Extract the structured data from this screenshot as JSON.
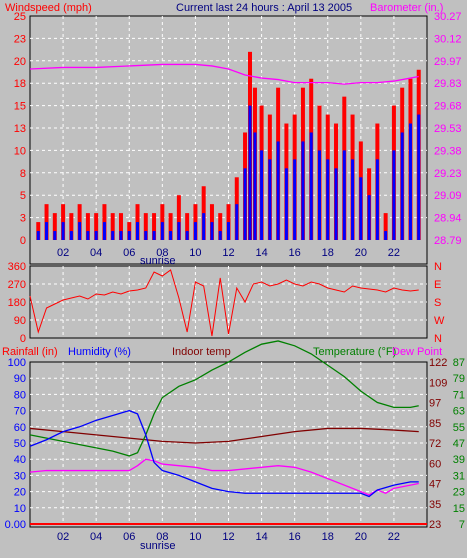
{
  "header": {
    "left_title": "Windspeed (mph)",
    "center_title": "Current last 24 hours : April 13 2005",
    "right_title": "Barometer (in.)"
  },
  "lower_header": {
    "rainfall": "Rainfall (in)",
    "humidity": "Humidity (%)",
    "indoor": "Indoor temp",
    "temperature": "Temperature (°F)",
    "dewpoint": "Dew Point"
  },
  "sunrise_label": "sunrise",
  "colors": {
    "background": "#c0c0c0",
    "grid": "#ffffff",
    "wind_avg": "#0000ff",
    "wind_gust": "#ff0000",
    "barometer": "#ff00ff",
    "direction": "#ff0000",
    "rainfall": "#ff0000",
    "humidity": "#0000ff",
    "indoor": "#800000",
    "temperature": "#008000",
    "dewpoint": "#ff00ff",
    "title_red": "#ff0000",
    "title_blue": "#000080",
    "title_magenta": "#ff00ff"
  },
  "chart_data": [
    {
      "type": "bar",
      "x_ticks": [
        "02",
        "04",
        "06",
        "08",
        "10",
        "12",
        "14",
        "16",
        "18",
        "20",
        "22"
      ],
      "xlim": [
        0,
        24
      ],
      "ylim": [
        0,
        25
      ],
      "y_ticks": [
        "0",
        "3",
        "5",
        "8",
        "10",
        "13",
        "15",
        "18",
        "20",
        "23",
        "25"
      ],
      "y2_ticks": [
        "28.79",
        "28.94",
        "29.09",
        "29.23",
        "29.38",
        "29.53",
        "29.68",
        "29.83",
        "29.97",
        "30.12",
        "30.27"
      ],
      "y2lim": [
        28.79,
        30.27
      ],
      "grid": true,
      "series": [
        {
          "key": "gust",
          "x": [
            0.5,
            1.0,
            1.5,
            2.0,
            2.5,
            3.0,
            3.5,
            4.0,
            4.5,
            5.0,
            5.5,
            6.0,
            6.5,
            7.0,
            7.5,
            8.0,
            8.5,
            9.0,
            9.5,
            10.0,
            10.5,
            11.0,
            11.5,
            12.0,
            12.5,
            13.0,
            13.3,
            13.6,
            14.0,
            14.5,
            15.0,
            15.5,
            16.0,
            16.5,
            17.0,
            17.5,
            18.0,
            18.5,
            19.0,
            19.5,
            20.0,
            20.5,
            21.0,
            21.5,
            22.0,
            22.5,
            23.0,
            23.5
          ],
          "values": [
            2,
            4,
            3,
            4,
            3,
            4,
            3,
            3,
            4,
            3,
            3,
            2,
            4,
            3,
            3,
            4,
            3,
            5,
            3,
            4,
            6,
            4,
            3,
            4,
            7,
            12,
            21,
            17,
            15,
            14,
            17,
            13,
            14,
            17,
            18,
            15,
            14,
            13,
            16,
            14,
            11,
            8,
            13,
            3,
            15,
            17,
            18,
            19
          ]
        },
        {
          "key": "avg",
          "x": [
            0.5,
            1.0,
            1.5,
            2.0,
            2.5,
            3.0,
            3.5,
            4.0,
            4.5,
            5.0,
            5.5,
            6.0,
            6.5,
            7.0,
            7.5,
            8.0,
            8.5,
            9.0,
            9.5,
            10.0,
            10.5,
            11.0,
            11.5,
            12.0,
            12.5,
            13.0,
            13.3,
            13.6,
            14.0,
            14.5,
            15.0,
            15.5,
            16.0,
            16.5,
            17.0,
            17.5,
            18.0,
            18.5,
            19.0,
            19.5,
            20.0,
            20.5,
            21.0,
            21.5,
            22.0,
            22.5,
            23.0,
            23.5
          ],
          "values": [
            1,
            2,
            1,
            2,
            1,
            2,
            1,
            1,
            2,
            1,
            1,
            1,
            2,
            1,
            1,
            2,
            1,
            2,
            1,
            2,
            3,
            2,
            1,
            2,
            4,
            8,
            15,
            12,
            10,
            9,
            11,
            8,
            9,
            11,
            12,
            10,
            9,
            8,
            10,
            9,
            7,
            5,
            9,
            1,
            10,
            12,
            13,
            14
          ]
        },
        {
          "key": "barometer",
          "axis": "right",
          "x": [
            0,
            2,
            4,
            6,
            8,
            9,
            10,
            11,
            12,
            13,
            14,
            15,
            16,
            17,
            18,
            19,
            20,
            21,
            22,
            23,
            23.5
          ],
          "values": [
            29.92,
            29.93,
            29.93,
            29.94,
            29.95,
            29.95,
            29.95,
            29.94,
            29.92,
            29.88,
            29.86,
            29.85,
            29.83,
            29.83,
            29.83,
            29.82,
            29.83,
            29.83,
            29.84,
            29.86,
            29.87
          ]
        }
      ]
    },
    {
      "type": "line",
      "xlim": [
        0,
        24
      ],
      "ylim": [
        0,
        360
      ],
      "y_ticks": [
        "0",
        "90",
        "180",
        "270",
        "360"
      ],
      "y2_ticks": [
        "N",
        "W",
        "S",
        "E",
        "N"
      ],
      "grid": true,
      "series": [
        {
          "key": "direction",
          "x": [
            0,
            0.5,
            1,
            1.5,
            2,
            2.5,
            3,
            3.5,
            4,
            4.5,
            5,
            5.5,
            6,
            6.5,
            7,
            7.5,
            8,
            8.5,
            9,
            9.5,
            10,
            10.5,
            11,
            11.5,
            12,
            12.5,
            13,
            13.5,
            14,
            14.5,
            15,
            15.5,
            16,
            16.5,
            17,
            17.5,
            18,
            18.5,
            19,
            19.5,
            20,
            20.5,
            21,
            21.5,
            22,
            22.5,
            23,
            23.5
          ],
          "values": [
            210,
            30,
            150,
            170,
            190,
            200,
            210,
            195,
            220,
            215,
            230,
            220,
            235,
            240,
            250,
            330,
            310,
            340,
            200,
            30,
            280,
            260,
            10,
            300,
            20,
            250,
            180,
            270,
            280,
            260,
            270,
            290,
            270,
            260,
            280,
            270,
            250,
            240,
            230,
            260,
            250,
            245,
            240,
            230,
            250,
            240,
            235,
            240
          ]
        }
      ]
    },
    {
      "type": "line",
      "xlim": [
        0,
        24
      ],
      "ylim": [
        0,
        100
      ],
      "y_ticks": [
        "0.00",
        "10",
        "20",
        "30",
        "40",
        "50",
        "60",
        "70",
        "80",
        "90",
        "100"
      ],
      "y2_ticks_temp": [
        "23",
        "35",
        "47",
        "60",
        "72",
        "85",
        "97",
        "109",
        "122"
      ],
      "y2_ticks_dew": [
        "7",
        "15",
        "23",
        "31",
        "39",
        "47",
        "55",
        "63",
        "71",
        "79",
        "87"
      ],
      "grid": true,
      "series": [
        {
          "key": "humidity",
          "x": [
            0,
            1,
            2,
            3,
            4,
            5,
            6,
            6.5,
            7,
            7.5,
            8,
            9,
            10,
            11,
            12,
            13,
            14,
            15,
            16,
            17,
            18,
            19,
            20,
            20.5,
            21,
            22,
            23,
            23.5
          ],
          "values": [
            48,
            52,
            57,
            60,
            64,
            67,
            70,
            68,
            55,
            38,
            33,
            30,
            26,
            22,
            20,
            19,
            19,
            19,
            19,
            19,
            19,
            19,
            19,
            17,
            21,
            24,
            26,
            26
          ]
        },
        {
          "key": "rainfall",
          "x": [
            0,
            24
          ],
          "values": [
            0,
            0
          ]
        },
        {
          "key": "indoor",
          "x": [
            0,
            2,
            4,
            6,
            8,
            10,
            12,
            14,
            16,
            18,
            20,
            22,
            23.5
          ],
          "values": [
            59,
            57,
            55,
            53,
            51,
            50,
            51,
            54,
            57,
            59,
            59,
            58,
            57
          ]
        },
        {
          "key": "temperature",
          "x": [
            0,
            1,
            2,
            3,
            4,
            5,
            6,
            6.5,
            7,
            7.5,
            8,
            9,
            10,
            11,
            12,
            13,
            14,
            15,
            16,
            17,
            18,
            19,
            20,
            21,
            22,
            23,
            23.5
          ],
          "values": [
            55,
            53,
            51,
            49,
            47,
            45,
            42,
            44,
            55,
            68,
            78,
            85,
            89,
            95,
            100,
            106,
            111,
            113,
            110,
            105,
            98,
            91,
            82,
            75,
            72,
            72,
            73
          ]
        },
        {
          "key": "dewpoint",
          "x": [
            0,
            1,
            2,
            3,
            4,
            5,
            6,
            6.5,
            7,
            7.5,
            8,
            9,
            10,
            11,
            12,
            13,
            14,
            15,
            16,
            17,
            18,
            19,
            20,
            20.5,
            21,
            21.5,
            22,
            23,
            23.5
          ],
          "values": [
            32,
            33,
            33,
            33,
            33,
            33,
            33,
            36,
            40,
            39,
            37,
            36,
            35,
            33,
            33,
            34,
            35,
            36,
            35,
            32,
            28,
            24,
            20,
            18,
            21,
            19,
            22,
            24,
            25
          ]
        }
      ]
    }
  ]
}
